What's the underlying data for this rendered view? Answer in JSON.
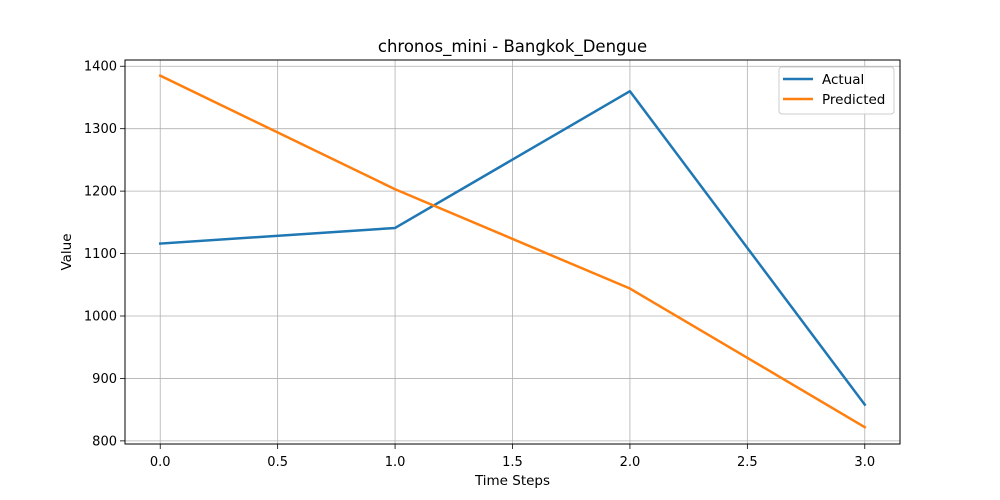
{
  "chart_data": {
    "type": "line",
    "title": "chronos_mini - Bangkok_Dengue",
    "xlabel": "Time Steps",
    "ylabel": "Value",
    "xlim": [
      -0.15,
      3.15
    ],
    "ylim": [
      795,
      1410
    ],
    "x_ticks": [
      0.0,
      0.5,
      1.0,
      1.5,
      2.0,
      2.5,
      3.0
    ],
    "x_tick_labels": [
      "0.0",
      "0.5",
      "1.0",
      "1.5",
      "2.0",
      "2.5",
      "3.0"
    ],
    "y_ticks": [
      800,
      900,
      1000,
      1100,
      1200,
      1300,
      1400
    ],
    "y_tick_labels": [
      "800",
      "900",
      "1000",
      "1100",
      "1200",
      "1300",
      "1400"
    ],
    "grid": true,
    "legend_position": "top-right",
    "x": [
      0,
      1,
      2,
      3
    ],
    "series": [
      {
        "name": "Actual",
        "color": "#1f77b4",
        "values": [
          1116,
          1141,
          1360,
          858
        ]
      },
      {
        "name": "Predicted",
        "color": "#ff7f0e",
        "values": [
          1385,
          1203,
          1044,
          822
        ]
      }
    ]
  }
}
